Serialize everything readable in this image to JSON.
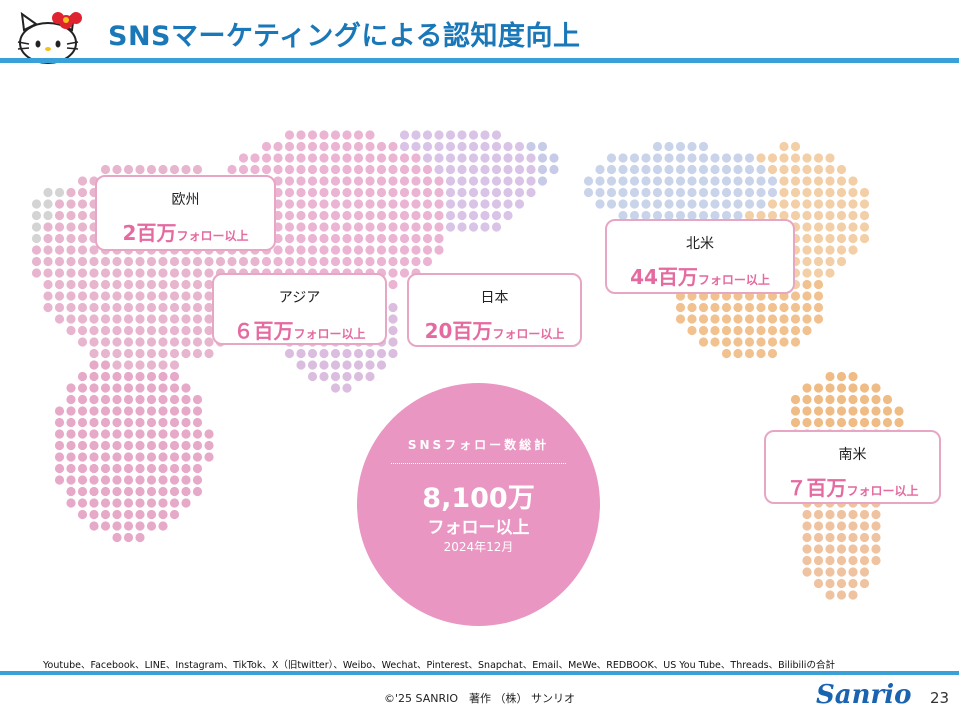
{
  "header": {
    "title": "SNSマーケティングによる認知度向上"
  },
  "regions": [
    {
      "name": "欧州",
      "big": "2百万",
      "small": "フォロー以上"
    },
    {
      "name": "アジア",
      "big": "６百万",
      "small": "フォロー以上"
    },
    {
      "name": "日本",
      "big": "20百万",
      "small": "フォロー以上"
    },
    {
      "name": "北米",
      "big": "44百万",
      "small": "フォロー以上"
    },
    {
      "name": "南米",
      "big": "７百万",
      "small": "フォロー以上"
    }
  ],
  "total": {
    "label": "SNSフォロー数総計",
    "number": "8,100万",
    "sub": "フォロー以上",
    "date": "2024年12月"
  },
  "footnote": "Youtube、Facebook、LINE、Instagram、TikTok、X（旧twitter）、Weibo、Wechat、Pinterest、Snapchat、Email、MeWe、REDBOOK、US You Tube、Threads、Bilibiliの合計",
  "footer": {
    "copyright": "©'25 SANRIO　著作 （株） サンリオ",
    "logo_text": "Sanrio",
    "page_number": "23"
  },
  "colors": {
    "title": "#1a78b8",
    "accent_bar": "#3aa0d8",
    "card_text": "#e46aa0",
    "total_circle": "#e996c2"
  }
}
